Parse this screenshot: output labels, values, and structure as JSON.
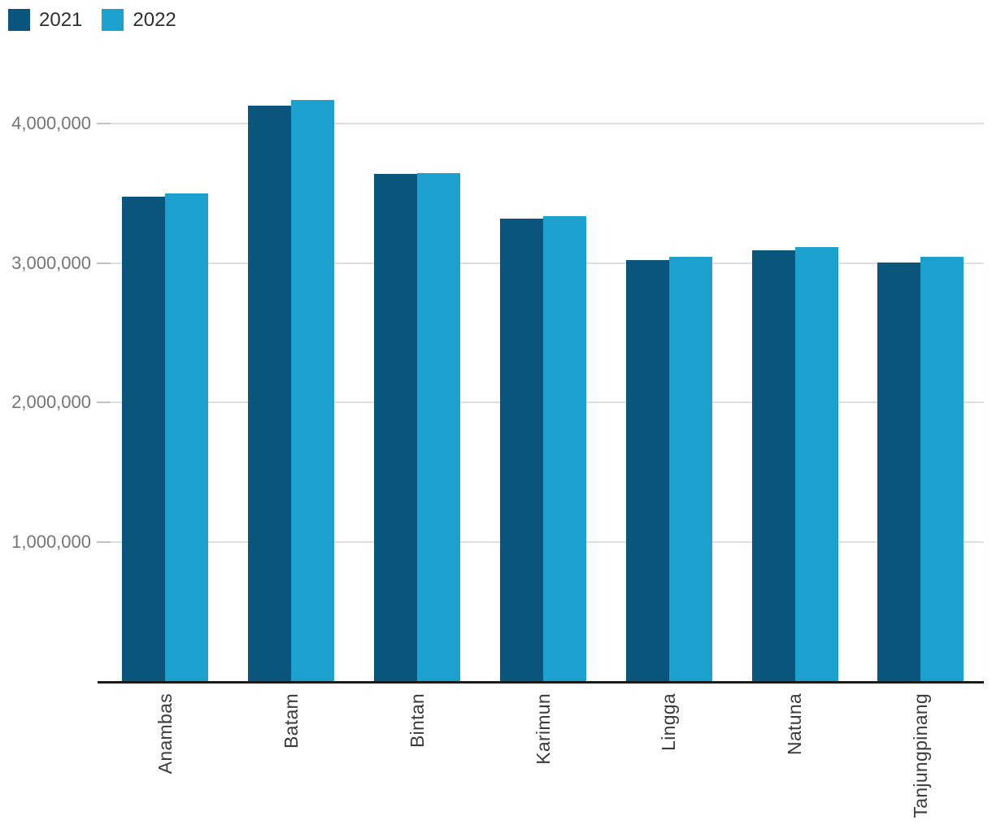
{
  "legend": {
    "position": "top-left"
  },
  "chart_data": {
    "type": "bar",
    "title": "",
    "xlabel": "",
    "ylabel": "",
    "categories": [
      "Anambas",
      "Batam",
      "Bintan",
      "Karimun",
      "Lingga",
      "Natuna",
      "Tanjungpinang"
    ],
    "series": [
      {
        "name": "2021",
        "color": "#09557C",
        "values": [
          3480000,
          4130000,
          3640000,
          3320000,
          3025000,
          3095000,
          3005000
        ]
      },
      {
        "name": "2022",
        "color": "#1CA1CE",
        "values": [
          3500000,
          4170000,
          3645000,
          3335000,
          3045000,
          3115000,
          3045000
        ]
      }
    ],
    "ylim": [
      0,
      4890000
    ],
    "yticks": [
      {
        "value": 1000000,
        "label": "1,000,000"
      },
      {
        "value": 2000000,
        "label": "2,000,000"
      },
      {
        "value": 3000000,
        "label": "3,000,000"
      },
      {
        "value": 4000000,
        "label": "4,000,000"
      }
    ],
    "grid": "horizontal",
    "legend_position": "top-left",
    "x_label_rotation": -90,
    "colors": {
      "gridline": "#dedede",
      "axis_line": "#1b1b1b",
      "y_tick_text": "#757575",
      "x_tick_text": "#3b3b3b"
    }
  }
}
